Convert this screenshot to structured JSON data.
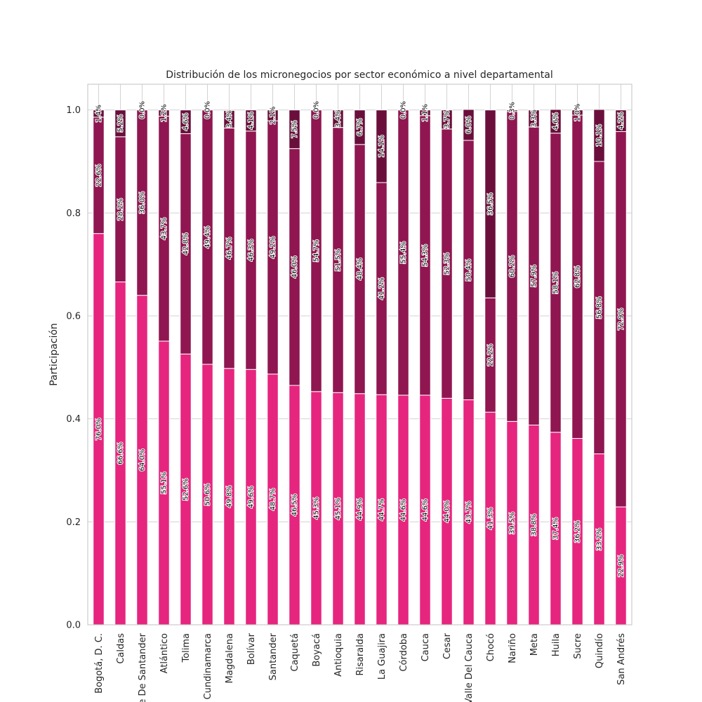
{
  "chart_data": {
    "type": "bar",
    "stacked": true,
    "title": "Distribución de los micronegocios por sector económico a nivel departamental",
    "xlabel": "",
    "ylabel": "Participación",
    "ylim": [
      0,
      1.05
    ],
    "yticks": [
      "0.0",
      "0.2",
      "0.4",
      "0.6",
      "0.8",
      "1.0"
    ],
    "grid": true,
    "categories": [
      "Bogotá, D. C.",
      "Caldas",
      "Norte De Santander",
      "Atlántico",
      "Tolima",
      "Cundinamarca",
      "Magdalena",
      "Bolívar",
      "Santander",
      "Caquetá",
      "Boyacá",
      "Antioquia",
      "Risaralda",
      "La Guajira",
      "Córdoba",
      "Cauca",
      "Cesar",
      "Valle Del Cauca",
      "Chocó",
      "Nariño",
      "Meta",
      "Huila",
      "Sucre",
      "Quindío",
      "San Andrés"
    ],
    "series": [
      {
        "color": "#e6257f",
        "values": [
          0.76,
          0.666,
          0.64,
          0.551,
          0.526,
          0.506,
          0.498,
          0.496,
          0.487,
          0.465,
          0.453,
          0.451,
          0.449,
          0.447,
          0.446,
          0.446,
          0.44,
          0.437,
          0.413,
          0.395,
          0.388,
          0.374,
          0.362,
          0.332,
          0.229
        ],
        "labels": [
          "76.0%",
          "66.6%",
          "64.0%",
          "55.1%",
          "52.6%",
          "50.6%",
          "49.8%",
          "49.6%",
          "48.7%",
          "46.5%",
          "45.3%",
          "45.1%",
          "44.9%",
          "44.7%",
          "44.6%",
          "44.6%",
          "44.0%",
          "43.7%",
          "41.3%",
          "39.5%",
          "38.8%",
          "37.4%",
          "36.2%",
          "33.2%",
          "22.9%"
        ]
      },
      {
        "color": "#8f1650",
        "values": [
          0.226,
          0.282,
          0.36,
          0.437,
          0.428,
          0.494,
          0.467,
          0.463,
          0.492,
          0.46,
          0.547,
          0.515,
          0.484,
          0.412,
          0.554,
          0.543,
          0.523,
          0.504,
          0.222,
          0.602,
          0.579,
          0.581,
          0.628,
          0.568,
          0.729
        ],
        "labels": [
          "22.6%",
          "28.2%",
          "36.0%",
          "43.7%",
          "42.8%",
          "49.4%",
          "46.7%",
          "46.3%",
          "49.2%",
          "46.0%",
          "54.7%",
          "51.5%",
          "48.4%",
          "41.2%",
          "55.4%",
          "54.3%",
          "52.3%",
          "50.4%",
          "22.2%",
          "60.2%",
          "57.9%",
          "58.1%",
          "62.8%",
          "56.8%",
          "72.9%"
        ]
      },
      {
        "color": "#6a0f3b",
        "values": [
          0.014,
          0.052,
          0.0,
          0.012,
          0.046,
          0.0,
          0.034,
          0.041,
          0.021,
          0.075,
          0.0,
          0.034,
          0.067,
          0.141,
          0.0,
          0.011,
          0.037,
          0.06,
          0.365,
          0.003,
          0.033,
          0.046,
          0.01,
          0.101,
          0.042
        ],
        "labels": [
          "1.4%",
          "5.2%",
          "0.0%",
          "1.2%",
          "4.6%",
          "0.0%",
          "3.4%",
          "4.1%",
          "2.1%",
          "7.5%",
          "0.0%",
          "3.4%",
          "6.7%",
          "14.1%",
          "0.0%",
          "1.1%",
          "3.7%",
          "6.0%",
          "36.5%",
          "0.3%",
          "3.3%",
          "4.6%",
          "1.0%",
          "10.1%",
          "4.2%"
        ]
      }
    ]
  }
}
